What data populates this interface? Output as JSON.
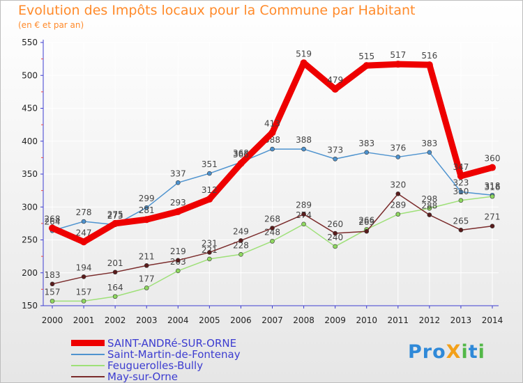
{
  "header": {
    "title": "Evolution des Impôts locaux pour la Commune par Habitant",
    "subtitle": "(en € et par an)"
  },
  "brand": {
    "logo_text": "ProXiti"
  },
  "colors": {
    "title": "#ff8a2a",
    "legend_text": "#3c3cd0",
    "axis": "#3c3cd0",
    "tick_label": "#222222",
    "data_label": "#444444",
    "grid": "#ffffff"
  },
  "chart_data": {
    "type": "line",
    "title": "Evolution des Impôts locaux pour la Commune par Habitant",
    "subtitle": "(en € et par an)",
    "xlabel": "",
    "ylabel": "",
    "ylim": [
      150,
      550
    ],
    "yticks": [
      150,
      200,
      250,
      300,
      350,
      400,
      450,
      500,
      550
    ],
    "grid": true,
    "legend_position": "bottom-left",
    "categories": [
      "2000",
      "2001",
      "2002",
      "2003",
      "2004",
      "2005",
      "2006",
      "2007",
      "2008",
      "2009",
      "2010",
      "2011",
      "2012",
      "2013",
      "2014"
    ],
    "series": [
      {
        "name": "Saint-Martin-de-Fontenay",
        "color": "#4e93cf",
        "marker": "#4e93cf",
        "width": 1.5,
        "values": [
          264,
          278,
          273,
          299,
          337,
          351,
          368,
          388,
          388,
          373,
          383,
          376,
          383,
          323,
          318
        ]
      },
      {
        "name": "Feuguerolles-Bully",
        "color": "#9ee078",
        "marker": "#8fd860",
        "width": 1.5,
        "values": [
          157,
          157,
          164,
          177,
          203,
          221,
          228,
          248,
          274,
          240,
          266,
          289,
          298,
          310,
          316
        ]
      },
      {
        "name": "May-sur-Orne",
        "color": "#7a2b2b",
        "marker": "#5a1c1c",
        "width": 1.5,
        "values": [
          183,
          194,
          201,
          211,
          219,
          231,
          249,
          268,
          289,
          260,
          263,
          320,
          288,
          265,
          271
        ]
      },
      {
        "name": "SAINT-ANDRé-SUR-ORNE",
        "color": "#ee0000",
        "marker": "#ee0000",
        "width": 9,
        "values": [
          268,
          247,
          275,
          281,
          293,
          312,
          366,
          413,
          519,
          479,
          515,
          517,
          516,
          347,
          360
        ]
      }
    ],
    "legend_order": [
      "SAINT-ANDRé-SUR-ORNE",
      "Saint-Martin-de-Fontenay",
      "Feuguerolles-Bully",
      "May-sur-Orne"
    ]
  }
}
